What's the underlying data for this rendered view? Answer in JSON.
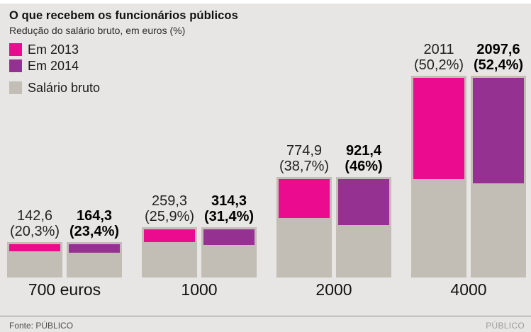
{
  "header": {
    "title": "O que recebem os funcionários públicos",
    "subtitle": "Redução do salário bruto, em euros (%)"
  },
  "legend": {
    "items": [
      {
        "label": "Em 2013",
        "color": "#ea0b8e"
      },
      {
        "label": "Em 2014",
        "color": "#953291"
      },
      {
        "label": "Salário bruto",
        "color": "#c2beb6"
      }
    ]
  },
  "footer": {
    "source": "Fonte: PÚBLICO",
    "brand": "PÚBLICO"
  },
  "colors": {
    "background": "#e7e6e4",
    "bar_gray": "#c2beb6",
    "pink_2013": "#ea0b8e",
    "purple_2014": "#953291",
    "footer_rule": "#8b8b8b"
  },
  "chart_data": {
    "type": "bar",
    "title": "O que recebem os funcionários públicos",
    "subtitle": "Redução do salário bruto, em euros (%)",
    "description": "Stacked bars: full gray bar height = gross salary; colored top segment = salary reduction in euros and as % of gross salary",
    "categories": [
      "700 euros",
      "1000",
      "2000",
      "4000"
    ],
    "gross_salary": [
      700,
      1000,
      2000,
      4000
    ],
    "bar_color": "#c2beb6",
    "grid": false,
    "legend_position": "top-left",
    "series": [
      {
        "name": "Em 2013",
        "color": "#ea0b8e",
        "emphasis": false,
        "values": [
          142.6,
          259.3,
          774.9,
          2011
        ],
        "value_labels": [
          "142,6",
          "259,3",
          "774,9",
          "2011"
        ],
        "pct": [
          20.3,
          25.9,
          38.7,
          50.2
        ],
        "pct_labels": [
          "(20,3%)",
          "(25,9%)",
          "(38,7%)",
          "(50,2%)"
        ]
      },
      {
        "name": "Em 2014",
        "color": "#953291",
        "emphasis": true,
        "values": [
          164.3,
          314.3,
          921.4,
          2097.6
        ],
        "value_labels": [
          "164,3",
          "314,3",
          "921,4",
          "2097,6"
        ],
        "pct": [
          23.4,
          31.4,
          46,
          52.4
        ],
        "pct_labels": [
          "(23,4%)",
          "(31,4%)",
          "(46%)",
          "(52,4%)"
        ]
      }
    ]
  }
}
